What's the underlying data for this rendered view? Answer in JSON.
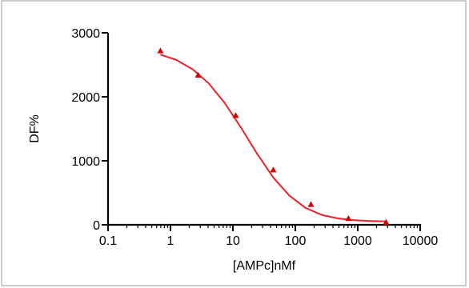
{
  "chart_data": {
    "type": "scatter",
    "xlabel": "[AMPc]nMf",
    "ylabel": "DF%",
    "x_scale": "log",
    "xlim": [
      0.1,
      10000
    ],
    "ylim": [
      0,
      3000
    ],
    "x_ticks": [
      0.1,
      1,
      10,
      100,
      1000,
      10000
    ],
    "x_tick_labels": [
      "0.1",
      "1",
      "10",
      "100",
      "1000",
      "10000"
    ],
    "y_ticks": [
      0,
      1000,
      2000,
      3000
    ],
    "y_tick_labels": [
      "0",
      "1000",
      "2000",
      "3000"
    ],
    "grid": false,
    "series": [
      {
        "marker": "triangle",
        "color": "#d40000",
        "x": [
          0.69,
          2.78,
          11.1,
          44.4,
          178,
          711,
          2844
        ],
        "y": [
          2720,
          2340,
          1710,
          860,
          320,
          100,
          40
        ]
      }
    ],
    "fit_curve": {
      "color": "#e8222a",
      "x_range": [
        0.69,
        2844
      ],
      "y": [
        2660,
        2575,
        2430,
        2210,
        1900,
        1520,
        1110,
        740,
        455,
        265,
        155,
        100,
        72,
        60,
        52
      ]
    }
  }
}
